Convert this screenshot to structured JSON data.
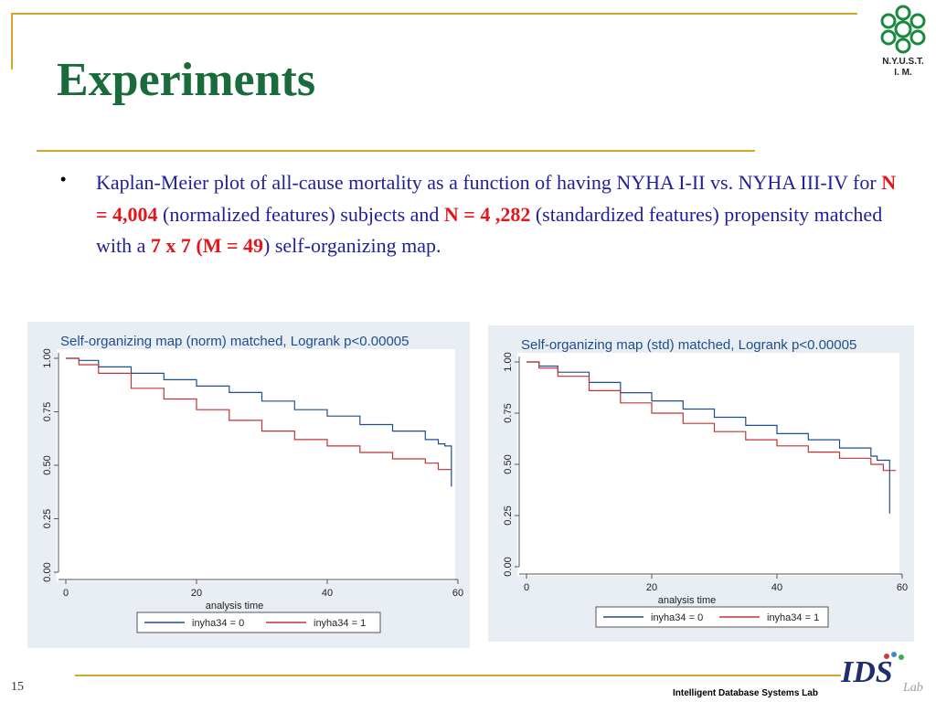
{
  "slide": {
    "title": "Experiments",
    "page_number": "15",
    "footer_lab": "Intelligent Database Systems Lab",
    "logo_caption_line1": "N.Y.U.S.T.",
    "logo_caption_line2": "I. M.",
    "lab_logo_text": "IDS",
    "lab_logo_sub": "Lab",
    "colors": {
      "title": "#1a6b3c",
      "body": "#1f1f9a",
      "highlight": "#e2161b",
      "rule": "#d4a62a"
    }
  },
  "bullet": {
    "t1": "Kaplan-Meier plot of all-cause mortality as a function of having NYHA I-II vs. NYHA III-IV for ",
    "h1": "N = 4,004",
    "t2": " (normalized features) subjects and ",
    "h2": "N = 4 ,282",
    "t3": " (standardized  features) propensity matched with a ",
    "h3": "7 x 7 (M = 49",
    "t4": ") self-organizing map."
  },
  "chart_data": [
    {
      "type": "line",
      "title": "Self-organizing map (norm) matched, Logrank p<0.00005",
      "xlabel": "analysis time",
      "ylabel": "",
      "xlim": [
        0,
        60
      ],
      "ylim": [
        0,
        1
      ],
      "x_ticks": [
        "0",
        "20",
        "40",
        "60"
      ],
      "y_ticks": [
        "0.00",
        "0.25",
        "0.50",
        "0.75",
        "1.00"
      ],
      "grid": false,
      "legend_position": "bottom",
      "series": [
        {
          "name": "inyha34 = 0",
          "color": "#1f4e8c",
          "x": [
            0,
            2,
            5,
            10,
            15,
            20,
            25,
            30,
            35,
            40,
            45,
            50,
            55,
            57,
            58,
            58,
            59,
            59
          ],
          "y": [
            1.0,
            0.99,
            0.96,
            0.93,
            0.9,
            0.87,
            0.84,
            0.8,
            0.76,
            0.73,
            0.69,
            0.66,
            0.62,
            0.6,
            0.6,
            0.59,
            0.59,
            0.4
          ]
        },
        {
          "name": "inyha34 = 1",
          "color": "#c03434",
          "x": [
            0,
            2,
            5,
            10,
            15,
            20,
            25,
            30,
            35,
            40,
            45,
            50,
            55,
            57,
            59
          ],
          "y": [
            1.0,
            0.97,
            0.93,
            0.86,
            0.81,
            0.76,
            0.71,
            0.66,
            0.62,
            0.59,
            0.56,
            0.53,
            0.51,
            0.48,
            0.48
          ]
        }
      ]
    },
    {
      "type": "line",
      "title": "Self-organizing map (std) matched, Logrank p<0.00005",
      "xlabel": "analysis time",
      "ylabel": "",
      "xlim": [
        0,
        60
      ],
      "ylim": [
        0,
        1
      ],
      "x_ticks": [
        "0",
        "20",
        "40",
        "60"
      ],
      "y_ticks": [
        "0.00",
        "0.25",
        "0.50",
        "0.75",
        "1.00"
      ],
      "grid": false,
      "legend_position": "bottom",
      "series": [
        {
          "name": "inyha34 = 0",
          "color": "#1f4e8c",
          "x": [
            0,
            2,
            5,
            10,
            15,
            20,
            25,
            30,
            35,
            40,
            45,
            50,
            55,
            56,
            58,
            58
          ],
          "y": [
            1.0,
            0.98,
            0.95,
            0.9,
            0.85,
            0.81,
            0.77,
            0.73,
            0.69,
            0.65,
            0.62,
            0.58,
            0.54,
            0.52,
            0.52,
            0.26
          ]
        },
        {
          "name": "inyha34 = 1",
          "color": "#c03434",
          "x": [
            0,
            2,
            5,
            10,
            15,
            20,
            25,
            30,
            35,
            40,
            45,
            50,
            55,
            57,
            59
          ],
          "y": [
            1.0,
            0.97,
            0.93,
            0.86,
            0.8,
            0.75,
            0.7,
            0.66,
            0.62,
            0.59,
            0.56,
            0.53,
            0.5,
            0.47,
            0.47
          ]
        }
      ]
    }
  ]
}
